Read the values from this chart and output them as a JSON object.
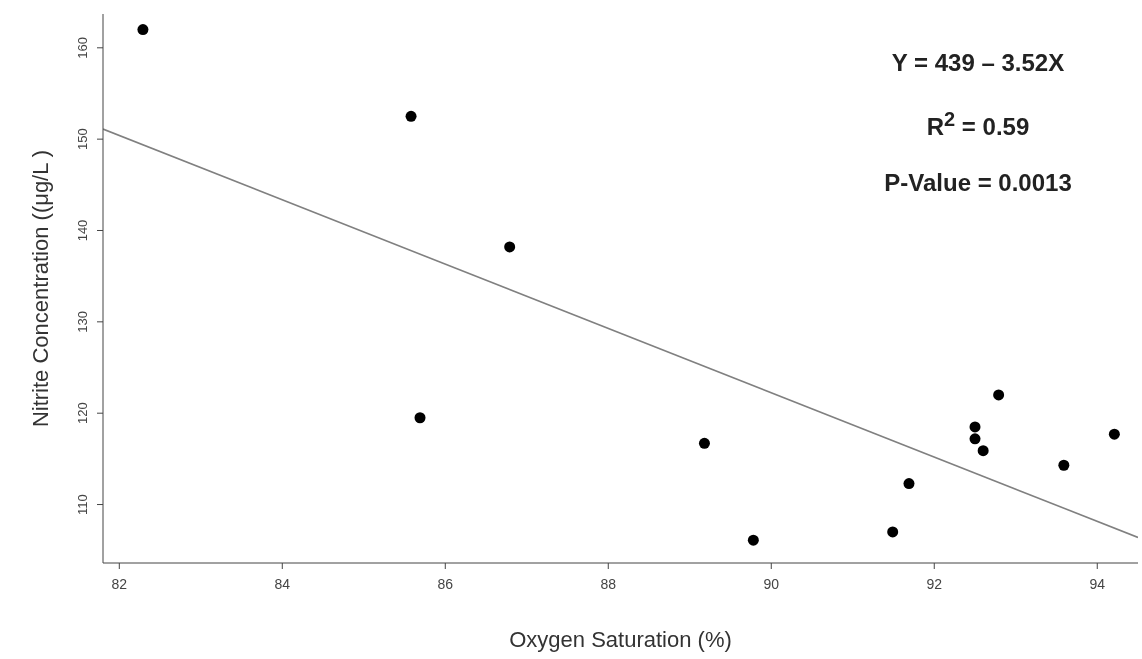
{
  "chart_data": {
    "type": "scatter",
    "xlabel": "Oxygen Saturation (%)",
    "ylabel": "Nitrite Concentration ((μg/L )",
    "annotations": [
      "Y = 439 – 3.52X",
      "R$^{2}$ = 0.59",
      "P-Value = 0.0013"
    ],
    "xlim": [
      81.8,
      94.5
    ],
    "xticks": [
      82,
      84,
      86,
      88,
      90,
      92,
      94
    ],
    "ylim": [
      103.6,
      163.7
    ],
    "yticks": [
      110,
      120,
      130,
      140,
      150,
      160
    ],
    "grid": false,
    "legend": false,
    "series": [
      {
        "color": "#000000",
        "marker": "circle",
        "x": [
          82.29,
          85.58,
          86.79,
          85.69,
          89.18,
          89.78,
          92.79,
          92.5,
          92.5,
          92.6,
          91.69,
          91.49,
          93.59,
          94.21
        ],
        "values": [
          162.0,
          152.5,
          138.2,
          119.5,
          116.7,
          106.1,
          122.0,
          118.5,
          117.2,
          115.9,
          112.3,
          107.0,
          114.3,
          117.7
        ]
      },
      {
        "type": "line",
        "color": "#808080",
        "marker": "none",
        "line_style": "solid",
        "x": [
          81.8,
          94.5
        ],
        "values": [
          151.1,
          106.4
        ]
      }
    ]
  }
}
